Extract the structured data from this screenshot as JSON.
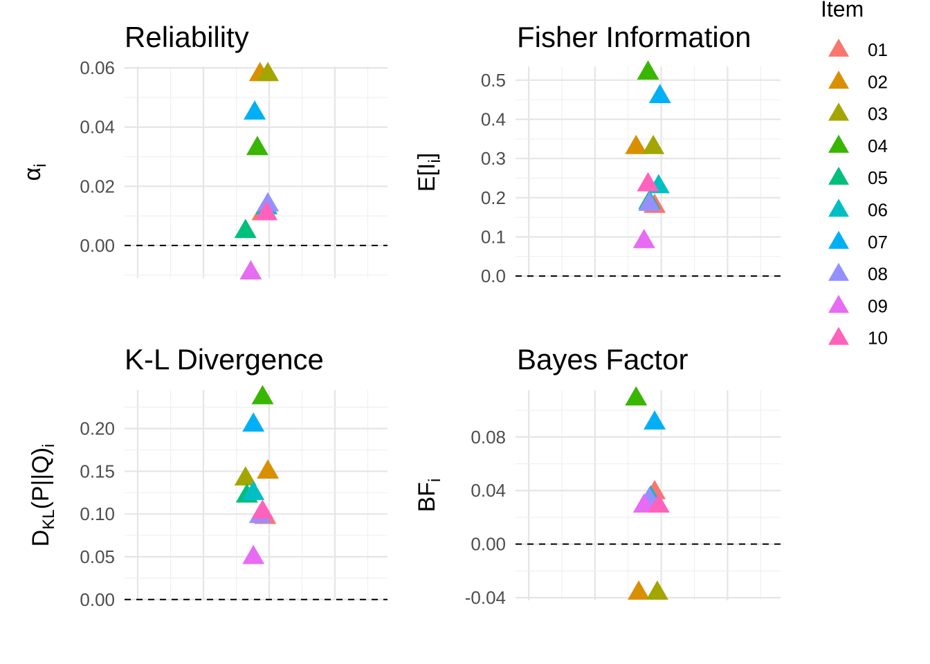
{
  "legend": {
    "title": "Item",
    "items": [
      {
        "label": "01",
        "color": "#F8766D"
      },
      {
        "label": "02",
        "color": "#D89000"
      },
      {
        "label": "03",
        "color": "#A3A500"
      },
      {
        "label": "04",
        "color": "#39B600"
      },
      {
        "label": "05",
        "color": "#00BF7D"
      },
      {
        "label": "06",
        "color": "#00BFC4"
      },
      {
        "label": "07",
        "color": "#00B0F6"
      },
      {
        "label": "08",
        "color": "#9590FF"
      },
      {
        "label": "09",
        "color": "#E76BF3"
      },
      {
        "label": "10",
        "color": "#FF62BC"
      }
    ]
  },
  "chart_data": [
    {
      "type": "scatter",
      "title": "Reliability",
      "ylabel": "α",
      "ylabel_sub": "i",
      "ylim": [
        -0.011,
        0.0605
      ],
      "yticks": [
        0.0,
        0.02,
        0.04,
        0.06
      ],
      "ytick_labels": [
        "0.00",
        "0.02",
        "0.04",
        "0.06"
      ],
      "reference_line_y": 0,
      "x_axis_labels": "none",
      "points": [
        {
          "item": "01",
          "x": 0.05,
          "y": 0.011
        },
        {
          "item": "02",
          "x": 0.03,
          "y": 0.058
        },
        {
          "item": "03",
          "x": 0.09,
          "y": 0.058
        },
        {
          "item": "04",
          "x": 0.01,
          "y": 0.033
        },
        {
          "item": "05",
          "x": -0.08,
          "y": 0.005
        },
        {
          "item": "06",
          "x": 0.08,
          "y": 0.013
        },
        {
          "item": "07",
          "x": -0.01,
          "y": 0.045
        },
        {
          "item": "08",
          "x": 0.09,
          "y": 0.014
        },
        {
          "item": "09",
          "x": -0.04,
          "y": -0.009
        },
        {
          "item": "10",
          "x": 0.08,
          "y": 0.011
        }
      ]
    },
    {
      "type": "scatter",
      "title": "Fisher Information",
      "ylabel": "E[I",
      "ylabel_sub": "i",
      "ylabel_suffix": "]",
      "ylim": [
        -0.005,
        0.535
      ],
      "yticks": [
        0.0,
        0.1,
        0.2,
        0.3,
        0.4,
        0.5
      ],
      "ytick_labels": [
        "0.0",
        "0.1",
        "0.2",
        "0.3",
        "0.4",
        "0.5"
      ],
      "reference_line_y": 0,
      "x_axis_labels": "none",
      "points": [
        {
          "item": "01",
          "x": 0.05,
          "y": 0.18
        },
        {
          "item": "02",
          "x": -0.09,
          "y": 0.33
        },
        {
          "item": "03",
          "x": 0.04,
          "y": 0.33
        },
        {
          "item": "04",
          "x": 0.0,
          "y": 0.52
        },
        {
          "item": "05",
          "x": 0.01,
          "y": 0.19
        },
        {
          "item": "06",
          "x": 0.08,
          "y": 0.23
        },
        {
          "item": "07",
          "x": 0.09,
          "y": 0.46
        },
        {
          "item": "08",
          "x": 0.01,
          "y": 0.185
        },
        {
          "item": "09",
          "x": -0.03,
          "y": 0.09
        },
        {
          "item": "10",
          "x": 0.0,
          "y": 0.235
        }
      ]
    },
    {
      "type": "scatter",
      "title": "K-L Divergence",
      "ylabel": "D",
      "ylabel_sub": "KL",
      "ylabel_suffix": "(P||Q)",
      "ylabel_suffix_sub": "i",
      "ylim": [
        -0.001,
        0.245
      ],
      "yticks": [
        0.0,
        0.05,
        0.1,
        0.15,
        0.2
      ],
      "ytick_labels": [
        "0.00",
        "0.05",
        "0.10",
        "0.15",
        "0.20"
      ],
      "reference_line_y": 0,
      "x_axis_labels": "none",
      "points": [
        {
          "item": "01",
          "x": 0.07,
          "y": 0.097
        },
        {
          "item": "02",
          "x": 0.09,
          "y": 0.15
        },
        {
          "item": "03",
          "x": -0.08,
          "y": 0.142
        },
        {
          "item": "04",
          "x": 0.05,
          "y": 0.237
        },
        {
          "item": "05",
          "x": -0.07,
          "y": 0.122
        },
        {
          "item": "06",
          "x": -0.02,
          "y": 0.125
        },
        {
          "item": "07",
          "x": -0.02,
          "y": 0.205
        },
        {
          "item": "08",
          "x": 0.03,
          "y": 0.098
        },
        {
          "item": "09",
          "x": -0.02,
          "y": 0.05
        },
        {
          "item": "10",
          "x": 0.05,
          "y": 0.103
        }
      ]
    },
    {
      "type": "scatter",
      "title": "Bayes Factor",
      "ylabel": "BF",
      "ylabel_sub": "i",
      "ylim": [
        -0.042,
        0.115
      ],
      "yticks": [
        -0.04,
        0.0,
        0.04,
        0.08
      ],
      "ytick_labels": [
        "-0.04",
        "0.00",
        "0.04",
        "0.08"
      ],
      "reference_line_y": 0,
      "x_axis_labels": "none",
      "points": [
        {
          "item": "01",
          "x": 0.05,
          "y": 0.039
        },
        {
          "item": "02",
          "x": -0.07,
          "y": -0.036
        },
        {
          "item": "03",
          "x": 0.07,
          "y": -0.036
        },
        {
          "item": "04",
          "x": -0.09,
          "y": 0.109
        },
        {
          "item": "05",
          "x": 0.01,
          "y": 0.033
        },
        {
          "item": "06",
          "x": 0.02,
          "y": 0.035
        },
        {
          "item": "07",
          "x": 0.05,
          "y": 0.091
        },
        {
          "item": "08",
          "x": 0.01,
          "y": 0.034
        },
        {
          "item": "09",
          "x": -0.03,
          "y": 0.029
        },
        {
          "item": "10",
          "x": 0.08,
          "y": 0.029
        }
      ]
    }
  ]
}
